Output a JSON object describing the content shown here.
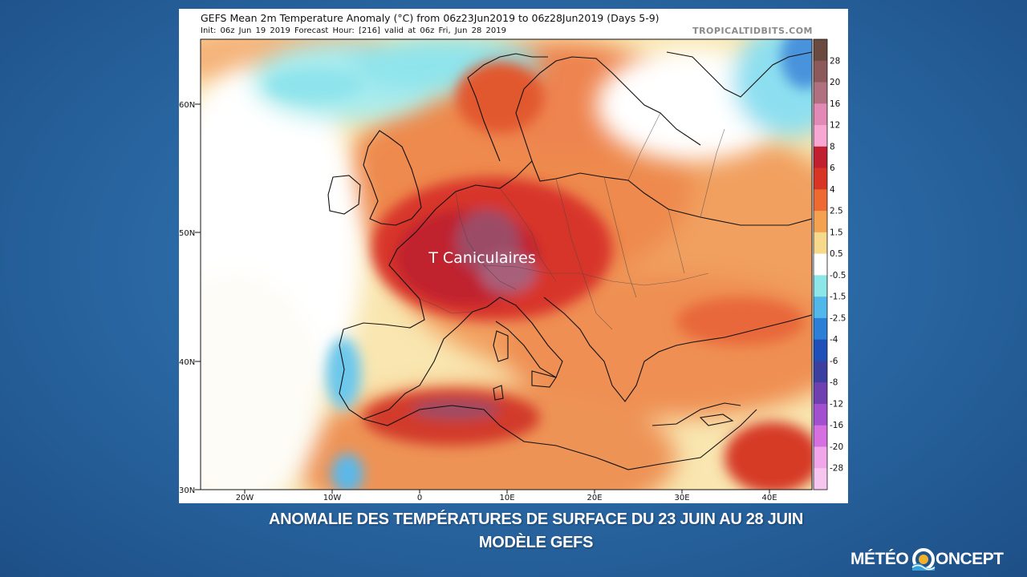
{
  "header": {
    "title": "GEFS Mean 2m Temperature Anomaly (°C) from 06z23Jun2019 to 06z28Jun2019 (Days 5-9)",
    "subtitle": "Init: 06z Jun 19 2019   Forecast Hour: [216]   valid at 06z Fri, Jun 28 2019",
    "source": "TROPICALTIDBITS.COM"
  },
  "map": {
    "annotation": "T Caniculaires",
    "lat_labels": [
      "60N",
      "50N",
      "40N",
      "30N"
    ],
    "lon_labels": [
      "20W",
      "10W",
      "0",
      "10E",
      "20E",
      "30E",
      "40E"
    ],
    "extent": {
      "lon": [
        -25,
        45
      ],
      "lat": [
        30,
        65
      ]
    }
  },
  "colorbar": {
    "levels": [
      "28",
      "20",
      "16",
      "12",
      "8",
      "6",
      "4",
      "2.5",
      "1.5",
      "0.5",
      "-0.5",
      "-1.5",
      "-2.5",
      "-4",
      "-6",
      "-8",
      "-12",
      "-16",
      "-20",
      "-28"
    ],
    "colors": [
      "#6b4a3f",
      "#8c5a5a",
      "#b07080",
      "#e28ab5",
      "#f7a7d2",
      "#c02030",
      "#d83524",
      "#ee6a31",
      "#f4a251",
      "#f7d98c",
      "#ffffff",
      "#8de6e8",
      "#52b8ea",
      "#2c7fd6",
      "#1f4fb8",
      "#3a3fa0",
      "#7040b0",
      "#a24fd0",
      "#d66fe0",
      "#f1a6ea",
      "#f7c6f0"
    ]
  },
  "caption": {
    "line1": "ANOMALIE DES TEMPÉRATURES  DE SURFACE DU 23 JUIN AU 28 JUIN",
    "line2": "MODÈLE GEFS"
  },
  "brand": {
    "left": "MÉTÉO",
    "right": "ONCEPT"
  }
}
